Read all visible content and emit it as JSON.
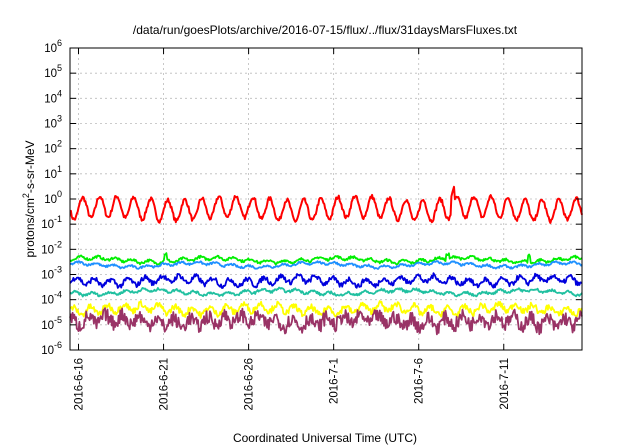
{
  "chart_data": {
    "type": "line",
    "title": "/data/run/goesPlots/archive/2016-07-15/flux/../flux/31daysMarsFluxes.txt",
    "xlabel": "Coordinated Universal Time (UTC)",
    "ylabel_parts": [
      "protons/cm",
      "2",
      "-s-sr-MeV"
    ],
    "yscale": "log",
    "ylim_exp": [
      -6,
      6
    ],
    "y_ticks": [
      {
        "base": "10",
        "exp": "-6"
      },
      {
        "base": "10",
        "exp": "-5"
      },
      {
        "base": "10",
        "exp": "-4"
      },
      {
        "base": "10",
        "exp": "-3"
      },
      {
        "base": "10",
        "exp": "-2"
      },
      {
        "base": "10",
        "exp": "-1"
      },
      {
        "base": "10",
        "exp": "0"
      },
      {
        "base": "10",
        "exp": "1"
      },
      {
        "base": "10",
        "exp": "2"
      },
      {
        "base": "10",
        "exp": "3"
      },
      {
        "base": "10",
        "exp": "4"
      },
      {
        "base": "10",
        "exp": "5"
      },
      {
        "base": "10",
        "exp": "6"
      }
    ],
    "x_ticks": [
      "2016-6-16",
      "2016-6-21",
      "2016-6-26",
      "2016-7-1",
      "2016-7-6",
      "2016-7-11"
    ],
    "x_tick_days": [
      0,
      5,
      10,
      15,
      20,
      25
    ],
    "xlim_days": [
      -0.5,
      29.6
    ],
    "grid": true,
    "legend": "none",
    "series": [
      {
        "color": "#ff0000",
        "level": -0.38,
        "amp": 0.42,
        "period": 1.0,
        "noise": 0.08,
        "spikes": [
          [
            22.0,
            0.7
          ]
        ]
      },
      {
        "color": "#00ee00",
        "level": -2.42,
        "amp": 0.06,
        "period": 1.0,
        "noise": 0.05,
        "spikes": [
          [
            5.1,
            0.25
          ],
          [
            21.7,
            0.2
          ],
          [
            26.5,
            0.3
          ]
        ]
      },
      {
        "color": "#1e90ff",
        "level": -2.62,
        "amp": 0.05,
        "period": 1.0,
        "noise": 0.04,
        "spikes": []
      },
      {
        "color": "#0000dd",
        "level": -3.25,
        "amp": 0.14,
        "period": 1.0,
        "noise": 0.1,
        "spikes": []
      },
      {
        "color": "#20c0a0",
        "level": -3.7,
        "amp": 0.06,
        "period": 1.0,
        "noise": 0.05,
        "spikes": []
      },
      {
        "color": "#ffff00",
        "level": -4.38,
        "amp": 0.15,
        "period": 1.0,
        "noise": 0.12,
        "spikes": []
      },
      {
        "color": "#993366",
        "level": -4.85,
        "amp": 0.18,
        "period": 1.0,
        "noise": 0.28,
        "spikes": []
      }
    ]
  }
}
